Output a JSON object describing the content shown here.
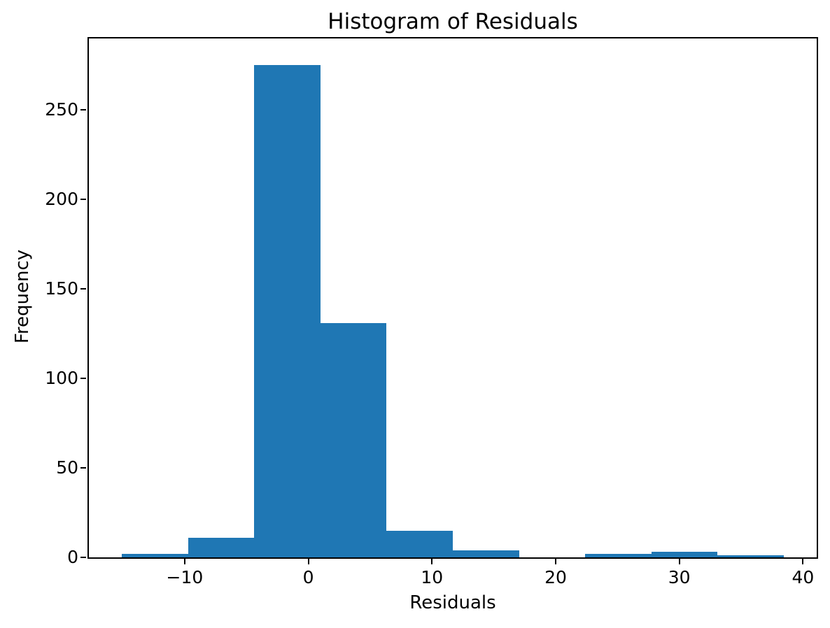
{
  "figure": {
    "background_color": "#ffffff",
    "text_color": "#000000"
  },
  "chart_data": {
    "type": "bar",
    "subtype": "histogram",
    "title": "Histogram of Residuals",
    "xlabel": "Residuals",
    "ylabel": "Frequency",
    "bar_color": "#1f77b4",
    "bin_edges": [
      -15.07,
      -9.72,
      -4.37,
      0.98,
      6.33,
      11.68,
      17.03,
      22.38,
      27.73,
      33.08,
      38.43
    ],
    "counts": [
      2,
      11,
      275,
      131,
      15,
      4,
      0,
      2,
      3,
      1
    ],
    "xticks": [
      -10,
      0,
      10,
      20,
      30,
      40
    ],
    "xtick_labels": [
      "−10",
      "0",
      "10",
      "20",
      "30",
      "40"
    ],
    "yticks": [
      0,
      50,
      100,
      150,
      200,
      250
    ],
    "ytick_labels": [
      "0",
      "50",
      "100",
      "150",
      "200",
      "250"
    ],
    "xlim": [
      -17.75,
      41.11
    ],
    "ylim": [
      0,
      290
    ],
    "grid": false,
    "legend_position": "none"
  }
}
